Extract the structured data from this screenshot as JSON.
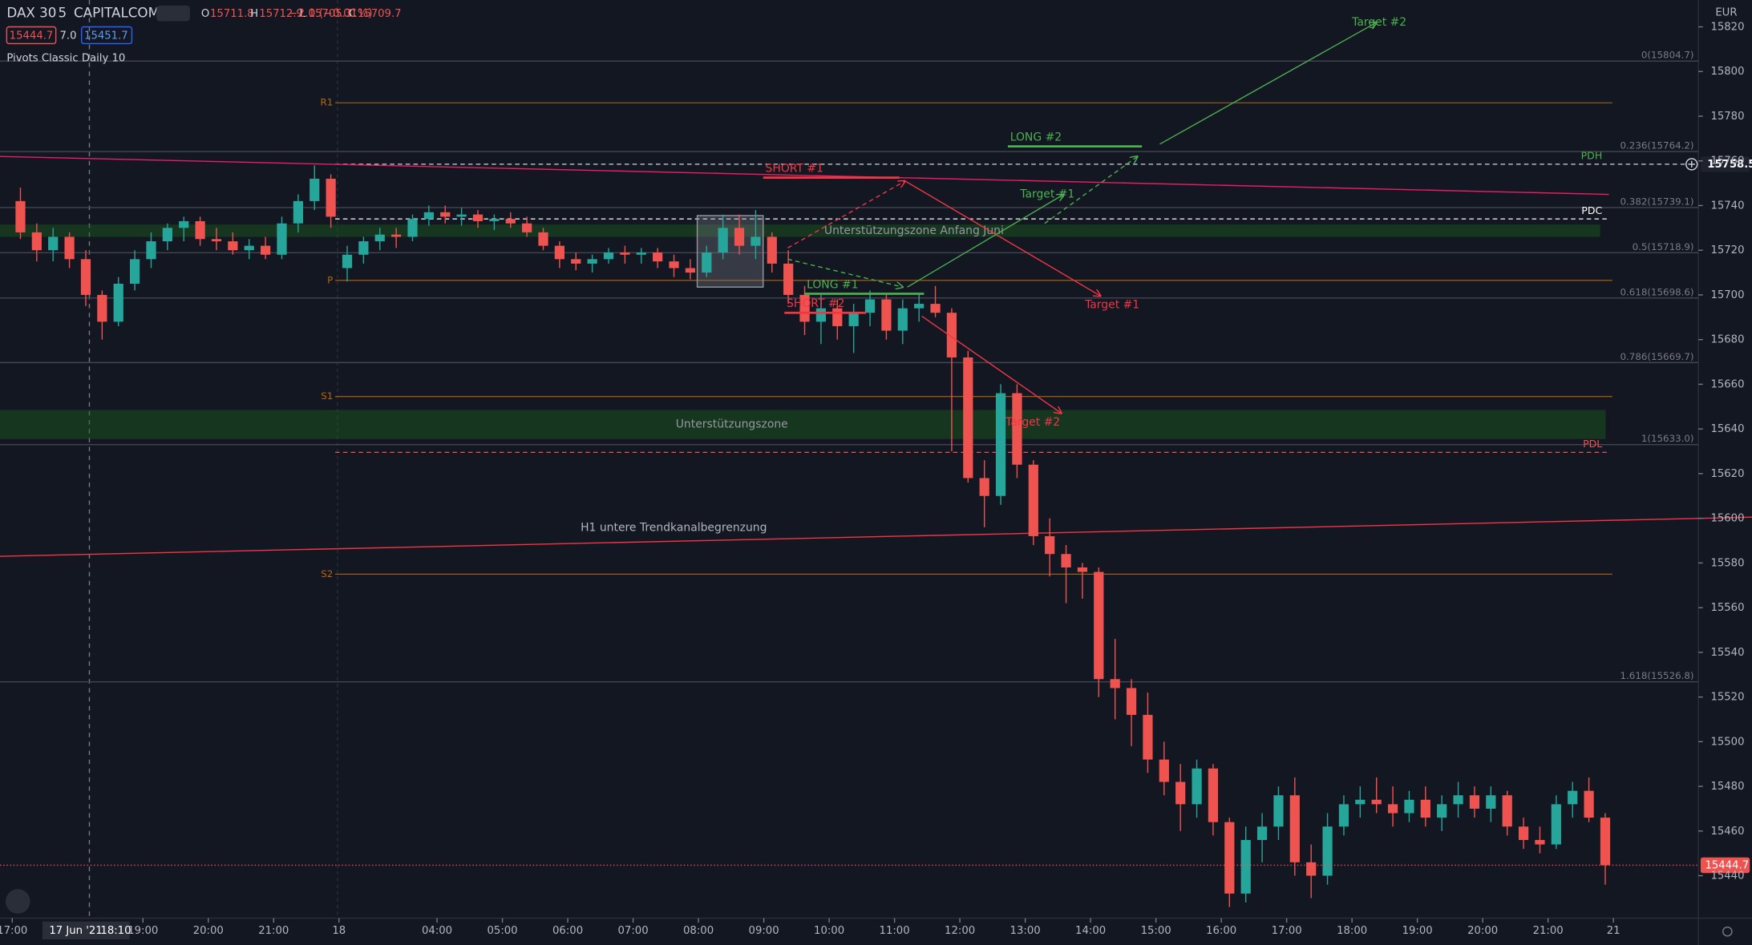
{
  "header": {
    "symbol": "DAX 30",
    "interval": "5",
    "exchange": "CAPITALCOM",
    "ohlc": [
      {
        "label": "O",
        "value": 15711.8
      },
      {
        "label": "H",
        "value": 15712.9
      },
      {
        "label": "L",
        "value": 15705.3
      },
      {
        "label": "C",
        "value": 15709.7
      }
    ],
    "change": "−2.0 (−0.01%)",
    "bid": 15444.7,
    "spread": "7.0",
    "ask": 15451.7,
    "indicator": "Pivots Classic Daily 10",
    "currency": "EUR"
  },
  "chart_data": {
    "type": "candlestick",
    "open": [
      15742,
      15728,
      15720,
      15726,
      15716,
      15700,
      15688,
      15705,
      15716,
      15724,
      15730,
      15733,
      15725,
      15724,
      15720,
      15722,
      15718,
      15732,
      15742,
      15752,
      15712,
      15718,
      15724,
      15727,
      15726,
      15734,
      15737,
      15735,
      15736,
      15733,
      15734,
      15732,
      15728,
      15722,
      15716,
      15714,
      15716,
      15719,
      15718,
      15719,
      15715,
      15712,
      15710,
      15719,
      15730,
      15722,
      15726,
      15714,
      15700,
      15688,
      15694,
      15686,
      15692,
      15698,
      15684,
      15694,
      15696,
      15692,
      15672,
      15618,
      15610,
      15656,
      15624,
      15592,
      15584,
      15578,
      15576,
      15528,
      15524,
      15512,
      15492,
      15482,
      15472,
      15488,
      15464,
      15432,
      15456,
      15462,
      15476,
      15446,
      15440,
      15462,
      15472,
      15474,
      15472,
      15468,
      15474,
      15466,
      15472,
      15476,
      15470,
      15476,
      15462,
      15456,
      15454,
      15472,
      15478,
      15466
    ],
    "high": [
      15748,
      15732,
      15730,
      15728,
      15720,
      15702,
      15708,
      15720,
      15728,
      15732,
      15735,
      15735,
      15730,
      15728,
      15725,
      15726,
      15735,
      15745,
      15758,
      15754,
      15722,
      15726,
      15730,
      15730,
      15736,
      15740,
      15740,
      15739,
      15738,
      15736,
      15737,
      15735,
      15730,
      15724,
      15719,
      15718,
      15721,
      15722,
      15721,
      15721,
      15718,
      15716,
      15722,
      15736,
      15736,
      15738,
      15728,
      15720,
      15704,
      15700,
      15698,
      15696,
      15702,
      15700,
      15698,
      15700,
      15704,
      15694,
      15675,
      15626,
      15660,
      15660,
      15626,
      15600,
      15588,
      15580,
      15578,
      15546,
      15528,
      15522,
      15500,
      15490,
      15492,
      15490,
      15466,
      15462,
      15468,
      15480,
      15484,
      15454,
      15468,
      15476,
      15480,
      15484,
      15480,
      15478,
      15480,
      15476,
      15482,
      15480,
      15480,
      15478,
      15466,
      15462,
      15476,
      15482,
      15484,
      15468
    ],
    "low": [
      15725,
      15715,
      15715,
      15712,
      15695,
      15680,
      15686,
      15702,
      15712,
      15720,
      15724,
      15722,
      15720,
      15718,
      15716,
      15716,
      15716,
      15728,
      15738,
      15730,
      15706,
      15714,
      15720,
      15721,
      15724,
      15731,
      15732,
      15731,
      15730,
      15729,
      15730,
      15726,
      15720,
      15712,
      15711,
      15710,
      15714,
      15714,
      15714,
      15712,
      15708,
      15707,
      15708,
      15716,
      15718,
      15716,
      15710,
      15696,
      15682,
      15678,
      15680,
      15674,
      15686,
      15680,
      15678,
      15688,
      15690,
      15630,
      15616,
      15596,
      15606,
      15618,
      15588,
      15574,
      15562,
      15564,
      15520,
      15510,
      15498,
      15486,
      15476,
      15460,
      15466,
      15458,
      15426,
      15428,
      15446,
      15456,
      15440,
      15430,
      15436,
      15458,
      15466,
      15468,
      15462,
      15464,
      15462,
      15460,
      15466,
      15466,
      15464,
      15458,
      15452,
      15450,
      15452,
      15466,
      15464,
      15436
    ],
    "close": [
      15728,
      15720,
      15726,
      15716,
      15700,
      15688,
      15705,
      15716,
      15724,
      15730,
      15733,
      15725,
      15724,
      15720,
      15722,
      15718,
      15732,
      15742,
      15752,
      15735,
      15718,
      15724,
      15727,
      15726,
      15734,
      15737,
      15735,
      15736,
      15733,
      15734,
      15732,
      15728,
      15722,
      15716,
      15714,
      15716,
      15719,
      15718,
      15719,
      15715,
      15712,
      15710,
      15719,
      15730,
      15722,
      15726,
      15714,
      15700,
      15688,
      15694,
      15686,
      15692,
      15698,
      15684,
      15694,
      15696,
      15692,
      15672,
      15618,
      15610,
      15656,
      15624,
      15592,
      15584,
      15578,
      15576,
      15528,
      15524,
      15512,
      15492,
      15482,
      15472,
      15488,
      15464,
      15432,
      15456,
      15462,
      15476,
      15446,
      15440,
      15462,
      15472,
      15474,
      15472,
      15468,
      15474,
      15466,
      15472,
      15476,
      15470,
      15476,
      15462,
      15456,
      15454,
      15472,
      15478,
      15466,
      15444.7
    ],
    "colors": {
      "up": "#26a69a",
      "down": "#ef5350"
    },
    "ylim": [
      15421,
      15832
    ],
    "yticks": [
      15440,
      15460,
      15480,
      15500,
      15520,
      15540,
      15560,
      15580,
      15600,
      15620,
      15640,
      15660,
      15680,
      15700,
      15720,
      15740,
      15760,
      15780,
      15800,
      15820
    ],
    "xlim": [
      -0.75,
      103.2
    ],
    "xticks": [
      {
        "value": 0,
        "label": "17:00"
      },
      {
        "value": 8,
        "label": "19:00"
      },
      {
        "value": 12,
        "label": "20:00"
      },
      {
        "value": 16,
        "label": "21:00"
      },
      {
        "value": 20,
        "label": "18"
      },
      {
        "value": 26,
        "label": "04:00"
      },
      {
        "value": 30,
        "label": "05:00"
      },
      {
        "value": 34,
        "label": "06:00"
      },
      {
        "value": 38,
        "label": "07:00"
      },
      {
        "value": 42,
        "label": "08:00"
      },
      {
        "value": 46,
        "label": "09:00"
      },
      {
        "value": 50,
        "label": "10:00"
      },
      {
        "value": 54,
        "label": "11:00"
      },
      {
        "value": 58,
        "label": "12:00"
      },
      {
        "value": 62,
        "label": "13:00"
      },
      {
        "value": 66,
        "label": "14:00"
      },
      {
        "value": 70,
        "label": "15:00"
      },
      {
        "value": 74,
        "label": "16:00"
      },
      {
        "value": 78,
        "label": "17:00"
      },
      {
        "value": 82,
        "label": "18:00"
      },
      {
        "value": 86,
        "label": "19:00"
      },
      {
        "value": 90,
        "label": "20:00"
      },
      {
        "value": 94,
        "label": "21:00"
      },
      {
        "value": 98,
        "label": "21"
      }
    ],
    "last": 15444.7,
    "crosshair": {
      "date": "17 Jun '21",
      "time": "18:10"
    },
    "pivots": [
      {
        "label": "R1",
        "price": 15786
      },
      {
        "label": "P",
        "price": 15706.5
      },
      {
        "label": "S1",
        "price": 15654.5
      },
      {
        "label": "S2",
        "price": 15575
      }
    ],
    "fib": [
      {
        "label": "0(15804.7)",
        "price": 15804.7
      },
      {
        "label": "0.236(15764.2)",
        "price": 15764.2
      },
      {
        "label": "0.382(15739.1)",
        "price": 15739.1
      },
      {
        "label": "0.5(15718.9)",
        "price": 15718.9
      },
      {
        "label": "0.618(15698.6)",
        "price": 15698.6
      },
      {
        "label": "0.786(15669.7)",
        "price": 15669.7
      },
      {
        "label": "1(15633.0)",
        "price": 15633.0
      },
      {
        "label": "1.618(15526.8)",
        "price": 15526.8
      }
    ],
    "levels": [
      {
        "label": "PDH",
        "price": 15758.5,
        "color": "#4caf50"
      },
      {
        "label": "PDC",
        "price": 15734,
        "color": "#ffffff"
      },
      {
        "label": "PDL",
        "price": 15629.5,
        "color": "#ef5350"
      }
    ],
    "zones": [
      {
        "label": "Unterstützungszone Anfang Juni",
        "from": 15726,
        "to": 15731.5
      },
      {
        "label": "Unterstützungszone",
        "from": 15635.5,
        "to": 15648.5
      }
    ],
    "trendlines": [
      {
        "start": 15762,
        "end": 15745,
        "color": "#e91e63"
      },
      {
        "label": "H1 untere Trendkanalbegrenzung",
        "start": 15583,
        "end": 15600.5,
        "color": "#f23645"
      }
    ],
    "trades": [
      {
        "label": "SHORT #1",
        "price": 15752.5,
        "color": "#f23645"
      },
      {
        "label": "LONG #2",
        "price": 15766.5,
        "color": "#4caf50"
      },
      {
        "label": "LONG #1",
        "price": 15700.5,
        "color": "#4caf50"
      },
      {
        "label": "SHORT #2",
        "price": 15692,
        "color": "#f23645"
      }
    ],
    "targets": [
      "Target #1",
      "Target #1",
      "Target #2",
      "Target #2"
    ]
  }
}
